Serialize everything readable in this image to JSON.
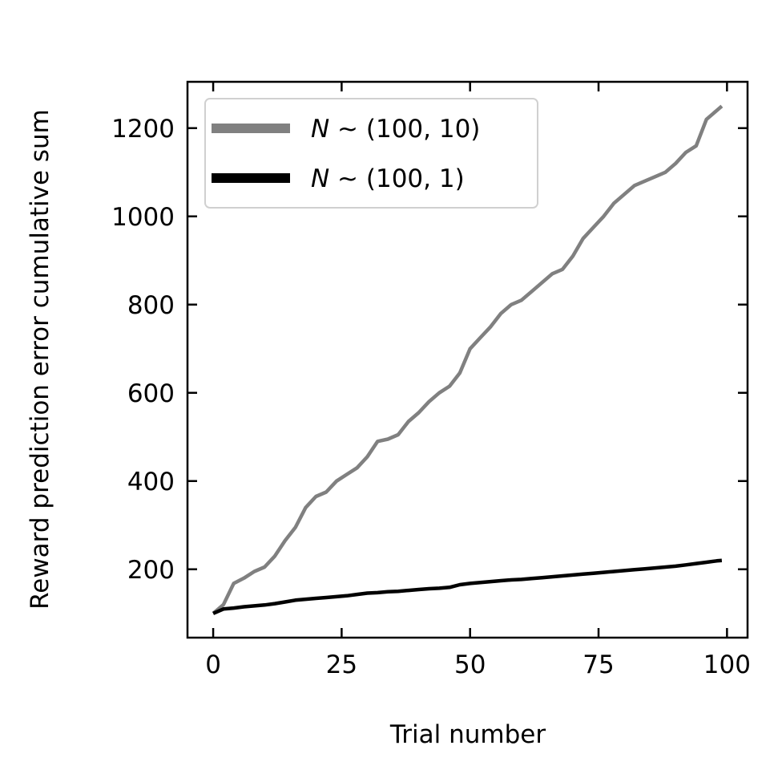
{
  "chart_data": {
    "type": "line",
    "title": "",
    "xlabel": "Trial number",
    "ylabel": "Reward prediction error cumulative sum",
    "xlim": [
      -5,
      104
    ],
    "ylim": [
      45,
      1305
    ],
    "xticks": [
      0,
      25,
      50,
      75,
      100
    ],
    "yticks": [
      200,
      400,
      600,
      800,
      1000,
      1200
    ],
    "grid": false,
    "legend_position": "top-left",
    "series": [
      {
        "name": "N ~ (100, 10)",
        "name_parts": {
          "var": "N",
          "rest": " ~ (100, 10)"
        },
        "color": "#808080",
        "x": [
          0,
          2,
          4,
          6,
          8,
          10,
          12,
          14,
          16,
          18,
          20,
          22,
          24,
          26,
          28,
          30,
          32,
          34,
          36,
          38,
          40,
          42,
          44,
          46,
          48,
          50,
          52,
          54,
          56,
          58,
          60,
          62,
          64,
          66,
          68,
          70,
          72,
          74,
          76,
          78,
          80,
          82,
          84,
          86,
          88,
          90,
          92,
          94,
          96,
          98,
          99
        ],
        "y": [
          100,
          120,
          168,
          180,
          195,
          205,
          230,
          265,
          295,
          340,
          365,
          375,
          400,
          415,
          430,
          455,
          490,
          495,
          505,
          535,
          555,
          580,
          600,
          615,
          645,
          700,
          725,
          750,
          780,
          800,
          810,
          830,
          850,
          870,
          880,
          910,
          950,
          975,
          1000,
          1030,
          1050,
          1070,
          1080,
          1090,
          1100,
          1120,
          1145,
          1160,
          1220,
          1240,
          1250
        ]
      },
      {
        "name": "N ~ (100, 1)",
        "name_parts": {
          "var": "N",
          "rest": " ~ (100, 1)"
        },
        "color": "#000000",
        "x": [
          0,
          2,
          4,
          6,
          8,
          10,
          12,
          14,
          16,
          18,
          20,
          22,
          24,
          26,
          28,
          30,
          32,
          34,
          36,
          38,
          40,
          42,
          44,
          46,
          48,
          50,
          52,
          54,
          56,
          58,
          60,
          62,
          64,
          66,
          68,
          70,
          72,
          74,
          76,
          78,
          80,
          82,
          84,
          86,
          88,
          90,
          92,
          94,
          96,
          98,
          99
        ],
        "y": [
          100,
          110,
          112,
          115,
          117,
          119,
          122,
          126,
          130,
          132,
          134,
          136,
          138,
          140,
          143,
          146,
          147,
          149,
          150,
          152,
          154,
          156,
          157,
          159,
          165,
          168,
          170,
          172,
          174,
          176,
          177,
          179,
          181,
          183,
          185,
          187,
          189,
          191,
          193,
          195,
          197,
          199,
          201,
          203,
          205,
          207,
          210,
          213,
          216,
          219,
          220
        ]
      }
    ]
  }
}
